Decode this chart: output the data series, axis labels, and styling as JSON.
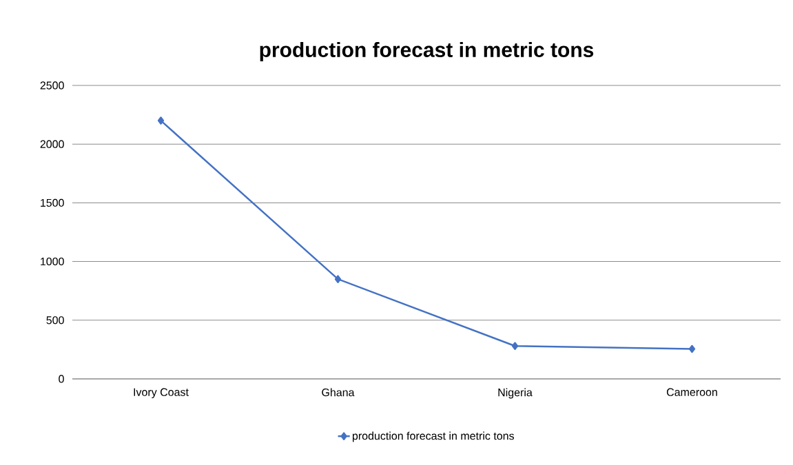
{
  "chart_data": {
    "type": "line",
    "title": "production forecast in metric tons",
    "categories": [
      "Ivory Coast",
      "Ghana",
      "Nigeria",
      "Cameroon"
    ],
    "series": [
      {
        "name": "production forecast in metric tons",
        "color": "#4472c4",
        "values": [
          2200,
          850,
          280,
          255
        ]
      }
    ],
    "ylim": [
      0,
      2500
    ],
    "yticks": [
      0,
      500,
      1000,
      1500,
      2000,
      2500
    ],
    "grid": "y",
    "legend": "bottom",
    "marker": "diamond",
    "line_style": "solid"
  }
}
